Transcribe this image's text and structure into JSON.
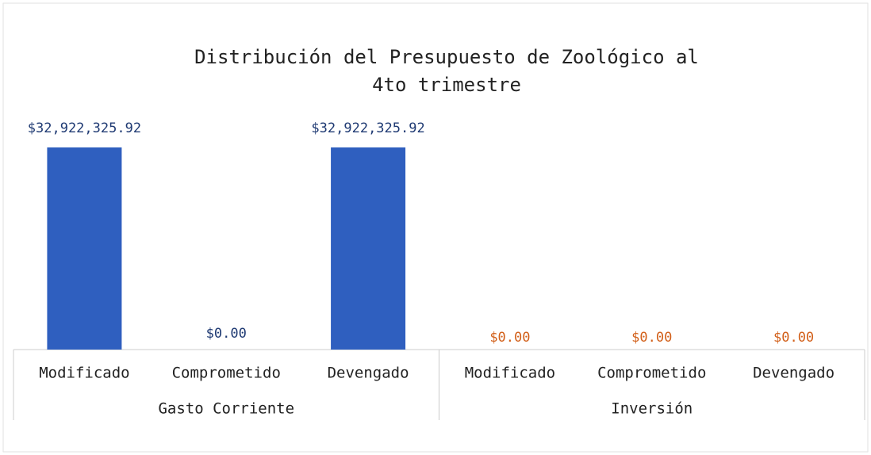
{
  "chart_data": {
    "type": "bar",
    "title": [
      "Distribución del Presupuesto de Zoológico al",
      "4to trimestre"
    ],
    "color": "#2f5fbf",
    "groups": [
      {
        "name": "Gasto Corriente",
        "label_color": "#1f3a73",
        "categories": [
          "Modificado",
          "Comprometido",
          "Devengado"
        ],
        "values": [
          32922325.92,
          0,
          32922325.92
        ],
        "value_labels": [
          "$32,922,325.92",
          "$0.00",
          "$32,922,325.92"
        ]
      },
      {
        "name": "Inversión",
        "label_color": "#d2601a",
        "categories": [
          "Modificado",
          "Comprometido",
          "Devengado"
        ],
        "values": [
          0,
          0,
          0
        ],
        "value_labels": [
          "$0.00",
          "$0.00",
          "$0.00"
        ]
      }
    ]
  }
}
